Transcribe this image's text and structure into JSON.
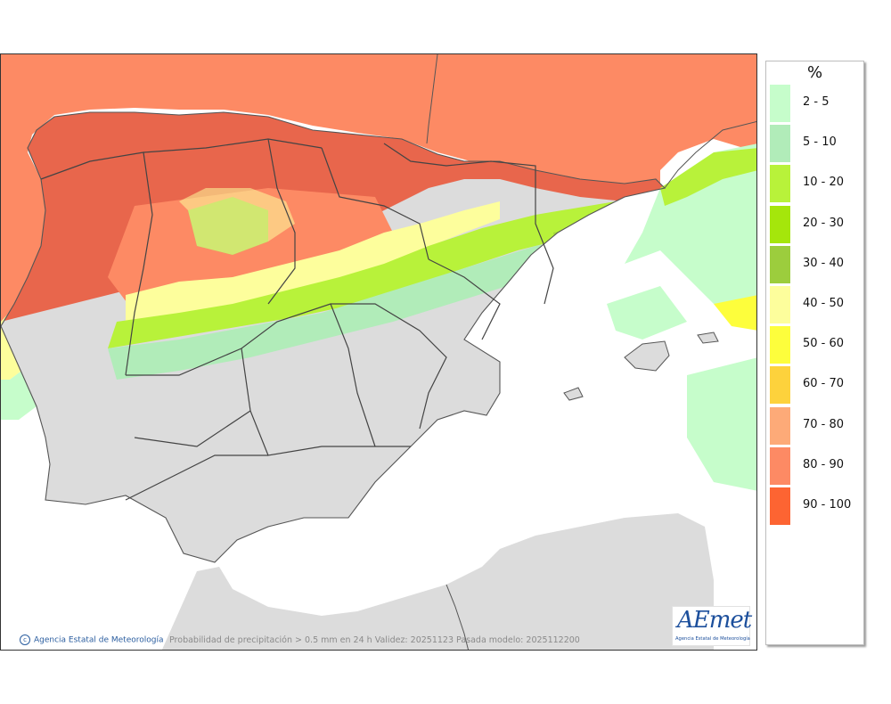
{
  "legend": {
    "unit": "%",
    "items": [
      {
        "label": "2 - 5",
        "color": "#c6fdcb"
      },
      {
        "label": "5 - 10",
        "color": "#b1ecb9"
      },
      {
        "label": "10 - 20",
        "color": "#b8f23a"
      },
      {
        "label": "20 - 30",
        "color": "#a5e60b"
      },
      {
        "label": "30 - 40",
        "color": "#9ccd3d"
      },
      {
        "label": "40 - 50",
        "color": "#fdfe9c"
      },
      {
        "label": "50 - 60",
        "color": "#fdfe3c"
      },
      {
        "label": "60 - 70",
        "color": "#fdd23c"
      },
      {
        "label": "70 - 80",
        "color": "#fdaa78"
      },
      {
        "label": "80 - 90",
        "color": "#fd8a64"
      },
      {
        "label": "90 - 100",
        "color": "#fd6432"
      }
    ]
  },
  "footer": {
    "credit": "Agencia Estatal de Meteorología",
    "caption": "Probabilidad de precipitación > 0.5 mm en 24 h Validez: 20251123 Pasada modelo: 2025112200"
  },
  "logo": {
    "mark": "AEmet",
    "subtitle": "Agencia Estatal de Meteorología"
  },
  "colors": {
    "sea": "#ffffff",
    "land": "#dcdcdc",
    "border": "#555555"
  }
}
